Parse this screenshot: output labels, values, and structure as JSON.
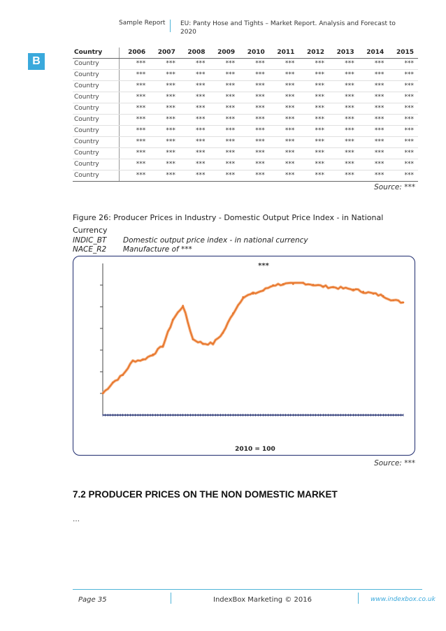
{
  "header": {
    "left": "Sample Report",
    "right": "EU: Panty Hose and Tights – Market Report. Analysis and Forecast to 2020"
  },
  "logo": {
    "letter": "B",
    "color": "#3aa9dc"
  },
  "table": {
    "columns": [
      "Country",
      "2006",
      "2007",
      "2008",
      "2009",
      "2010",
      "2011",
      "2012",
      "2013",
      "2014",
      "2015"
    ],
    "rows": [
      [
        "Country",
        "***",
        "***",
        "***",
        "***",
        "***",
        "***",
        "***",
        "***",
        "***",
        "***"
      ],
      [
        "Country",
        "***",
        "***",
        "***",
        "***",
        "***",
        "***",
        "***",
        "***",
        "***",
        "***"
      ],
      [
        "Country",
        "***",
        "***",
        "***",
        "***",
        "***",
        "***",
        "***",
        "***",
        "***",
        "***"
      ],
      [
        "Country",
        "***",
        "***",
        "***",
        "***",
        "***",
        "***",
        "***",
        "***",
        "***",
        "***"
      ],
      [
        "Country",
        "***",
        "***",
        "***",
        "***",
        "***",
        "***",
        "***",
        "***",
        "***",
        "***"
      ],
      [
        "Country",
        "***",
        "***",
        "***",
        "***",
        "***",
        "***",
        "***",
        "***",
        "***",
        "***"
      ],
      [
        "Country",
        "***",
        "***",
        "***",
        "***",
        "***",
        "***",
        "***",
        "***",
        "***",
        "***"
      ],
      [
        "Country",
        "***",
        "***",
        "***",
        "***",
        "***",
        "***",
        "***",
        "***",
        "***",
        "***"
      ],
      [
        "Country",
        "***",
        "***",
        "***",
        "***",
        "***",
        "***",
        "***",
        "***",
        "***",
        "***"
      ],
      [
        "Country",
        "***",
        "***",
        "***",
        "***",
        "***",
        "***",
        "***",
        "***",
        "***",
        "***"
      ],
      [
        "Country",
        "***",
        "***",
        "***",
        "***",
        "***",
        "***",
        "***",
        "***",
        "***",
        "***"
      ]
    ],
    "source": "Source: ***"
  },
  "figure": {
    "title": "Figure 26: Producer Prices in Industry - Domestic Output Price Index - in National Currency",
    "meta": [
      {
        "key": "INDIC_BT",
        "value": "Domestic output price index - in national currency"
      },
      {
        "key": "NACE_R2",
        "value": "Manufacture of ***"
      }
    ],
    "source": "Source: ***"
  },
  "chart_data": {
    "type": "line",
    "title": "***",
    "xlabel": "2010 = 100",
    "ylabel": "",
    "line_color": "#e8772e",
    "ylim": [
      0,
      7
    ],
    "y_tick_labels": [],
    "x": [
      0,
      4,
      8,
      12,
      16,
      20,
      24,
      28,
      32,
      36,
      40,
      44,
      48,
      52,
      56,
      60,
      64,
      68,
      72,
      76,
      80,
      84,
      88,
      92,
      96,
      100,
      104,
      108,
      112,
      116,
      120
    ],
    "values": [
      1.0,
      1.5,
      1.85,
      2.5,
      2.55,
      2.8,
      3.2,
      4.4,
      5.05,
      3.5,
      3.3,
      3.3,
      3.8,
      4.7,
      5.45,
      5.6,
      5.75,
      6.0,
      6.05,
      6.05,
      6.1,
      6.02,
      5.94,
      5.9,
      5.85,
      5.8,
      5.7,
      5.6,
      5.5,
      5.3,
      5.2
    ]
  },
  "section": {
    "title": "7.2 PRODUCER PRICES ON THE NON DOMESTIC MARKET",
    "body": "…"
  },
  "footer": {
    "page": "Page 35",
    "center": "IndexBox Marketing © 2016",
    "url": "www.indexbox.co.uk"
  }
}
